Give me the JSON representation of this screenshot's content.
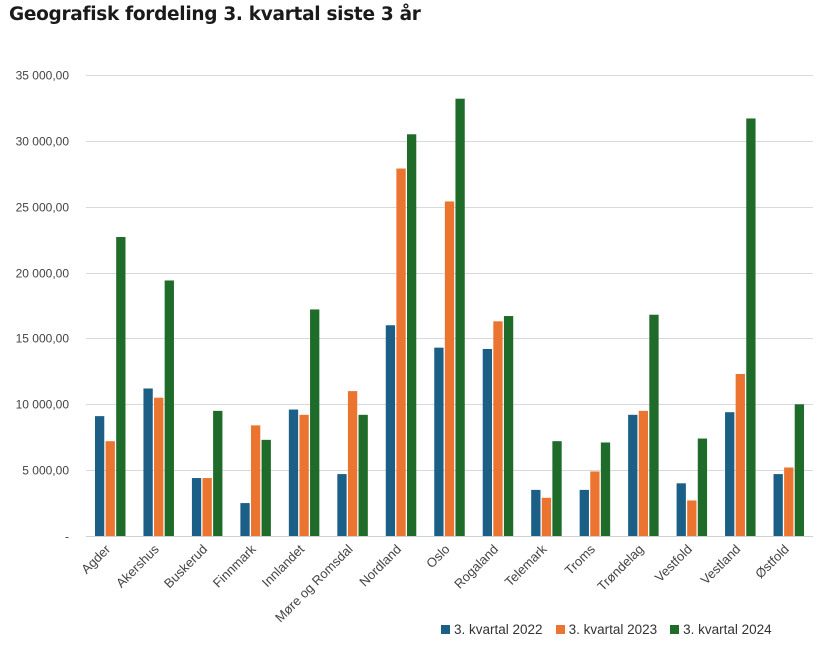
{
  "chart_data": {
    "type": "bar",
    "title": "Geografisk fordeling 3. kvartal siste 3 år",
    "categories": [
      "Agder",
      "Akershus",
      "Buskerud",
      "Finnmark",
      "Innlandet",
      "Møre og Romsdal",
      "Nordland",
      "Oslo",
      "Rogaland",
      "Telemark",
      "Troms",
      "Trøndelag",
      "Vestfold",
      "Vestland",
      "Østfold"
    ],
    "series": [
      {
        "name": "3. kvartal 2022",
        "color": "#1b5f86",
        "values": [
          9100,
          11200,
          4400,
          2500,
          9600,
          4700,
          16000,
          14300,
          14200,
          3500,
          3500,
          9200,
          4000,
          9400,
          4700
        ]
      },
      {
        "name": "3. kvartal 2023",
        "color": "#ec7431",
        "values": [
          7200,
          10500,
          4400,
          8400,
          9200,
          11000,
          27900,
          25400,
          16300,
          2900,
          4900,
          9500,
          2700,
          12300,
          5200
        ]
      },
      {
        "name": "3. kvartal 2024",
        "color": "#1e6b2a",
        "values": [
          22700,
          19400,
          9500,
          7300,
          17200,
          9200,
          30500,
          33200,
          16700,
          7200,
          7100,
          16800,
          7400,
          31700,
          10000
        ]
      }
    ],
    "ylim": [
      0,
      35000
    ],
    "yticks": [
      0,
      5000,
      10000,
      15000,
      20000,
      25000,
      30000,
      35000
    ],
    "ytick_labels": [
      "-",
      "5 000,00",
      "10 000,00",
      "15 000,00",
      "20 000,00",
      "25 000,00",
      "30 000,00",
      "35 000,00"
    ],
    "grid": true,
    "legend_position": "bottom-right"
  }
}
